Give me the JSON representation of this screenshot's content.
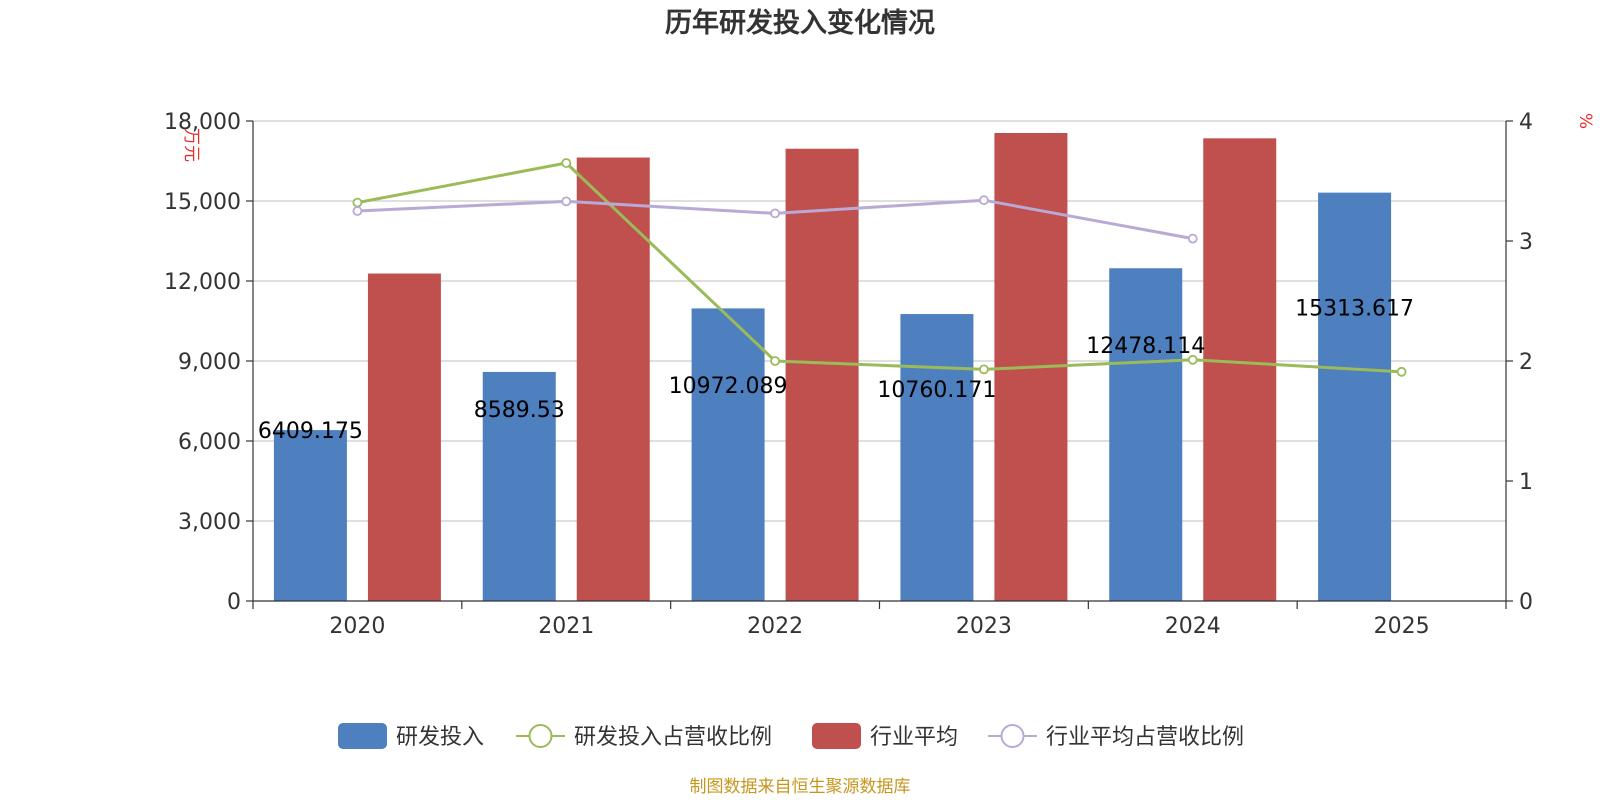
{
  "chart_data": {
    "type": "bar",
    "title": "历年研发投入变化情况",
    "categories": [
      "2020",
      "2021",
      "2022",
      "2023",
      "2024",
      "2025"
    ],
    "y_left": {
      "unit": "万元",
      "ticks": [
        "0",
        "3,000",
        "6,000",
        "9,000",
        "12,000",
        "15,000",
        "18,000"
      ],
      "ylim": [
        0,
        18000
      ]
    },
    "y_right": {
      "unit": "%",
      "ticks": [
        "0",
        "1",
        "2",
        "3",
        "4"
      ],
      "ylim": [
        0,
        4
      ]
    },
    "series": [
      {
        "name": "研发投入",
        "kind": "bar",
        "axis": "left",
        "color": "#4e7fbe",
        "values": [
          6409.175,
          8589.53,
          10972.089,
          10760.171,
          12478.114,
          15313.617
        ],
        "labels": [
          "6409.175",
          "8589.53",
          "10972.089",
          "10760.171",
          "12478.114",
          "15313.617"
        ]
      },
      {
        "name": "研发投入占营收比例",
        "kind": "line",
        "axis": "right",
        "color": "#9bbb59",
        "values": [
          3.32,
          3.65,
          2.0,
          1.93,
          2.01,
          1.91
        ]
      },
      {
        "name": "行业平均",
        "kind": "bar",
        "axis": "left",
        "color": "#c0504d",
        "values": [
          12280,
          16630,
          16960,
          17550,
          17350,
          null
        ]
      },
      {
        "name": "行业平均占营收比例",
        "kind": "line",
        "axis": "right",
        "color": "#b9a9d6",
        "values": [
          3.25,
          3.33,
          3.23,
          3.34,
          3.02,
          null
        ]
      }
    ],
    "grid": true,
    "legend_position": "bottom"
  },
  "source": "制图数据来自恒生聚源数据库"
}
